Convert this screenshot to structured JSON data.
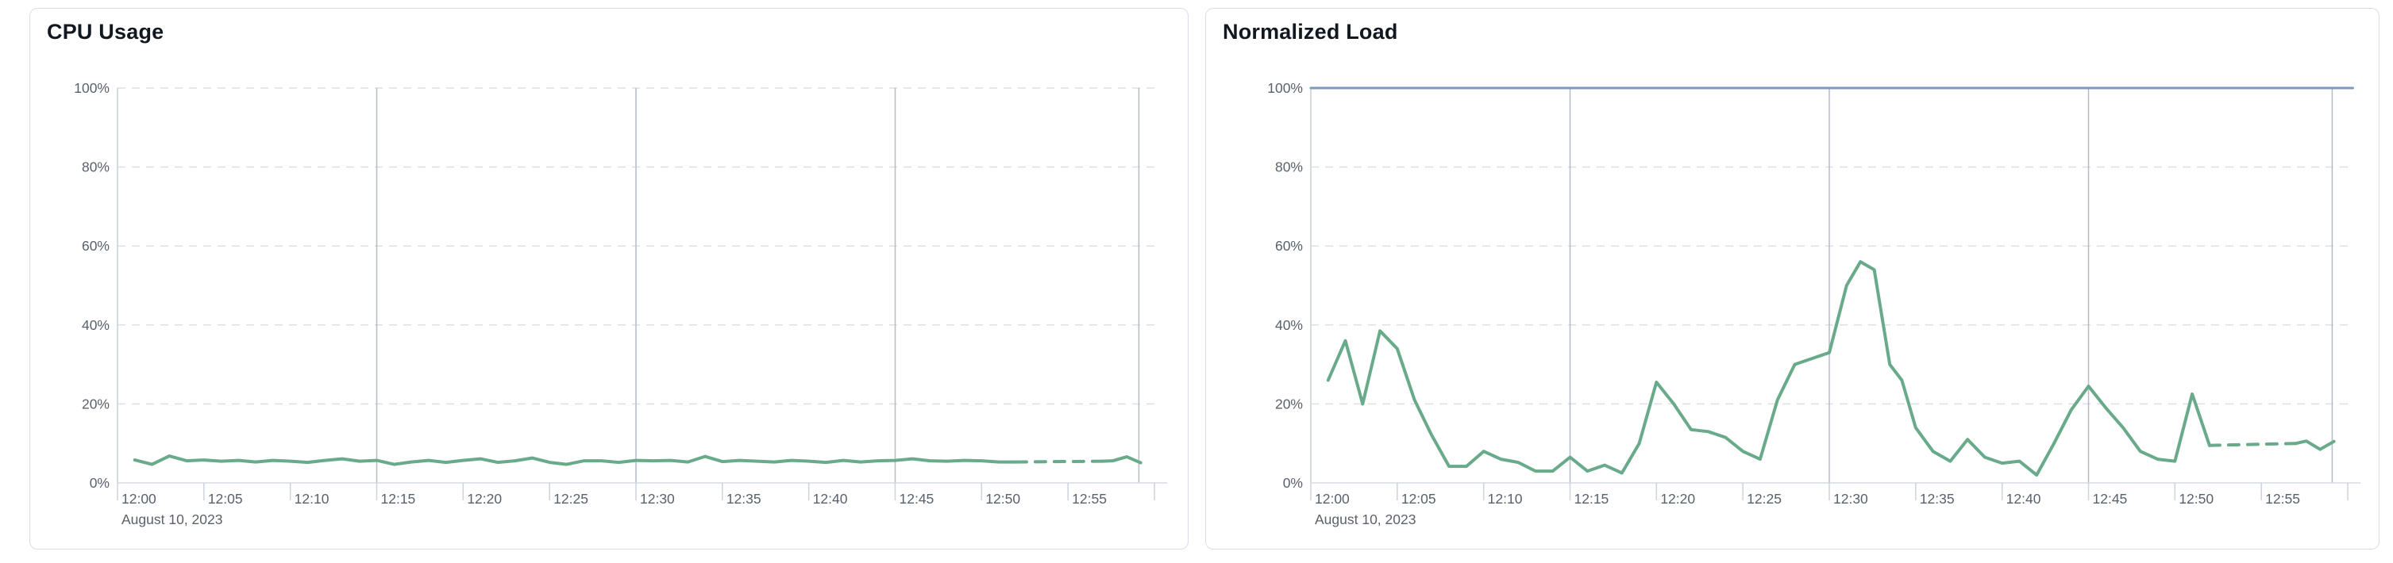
{
  "page": {
    "date_label": "August 10, 2023"
  },
  "chart_data": [
    {
      "type": "line",
      "title": "CPU Usage",
      "unit": "%",
      "legend_position": "none",
      "grid": true,
      "y_axis": {
        "min": 0,
        "max": 100,
        "ticks": [
          {
            "value": 0,
            "label": "0%"
          },
          {
            "value": 20,
            "label": "20%"
          },
          {
            "value": 40,
            "label": "40%"
          },
          {
            "value": 60,
            "label": "60%"
          },
          {
            "value": 80,
            "label": "80%"
          },
          {
            "value": 100,
            "label": "100%"
          }
        ]
      },
      "x_axis": {
        "start": "12:00",
        "end": "13:00",
        "date_label": "August 10, 2023",
        "ticks": [
          {
            "minute": 0,
            "label": "12:00"
          },
          {
            "minute": 5,
            "label": "12:05"
          },
          {
            "minute": 10,
            "label": "12:10"
          },
          {
            "minute": 15,
            "label": "12:15"
          },
          {
            "minute": 20,
            "label": "12:20"
          },
          {
            "minute": 25,
            "label": "12:25"
          },
          {
            "minute": 30,
            "label": "12:30"
          },
          {
            "minute": 35,
            "label": "12:35"
          },
          {
            "minute": 40,
            "label": "12:40"
          },
          {
            "minute": 45,
            "label": "12:45"
          },
          {
            "minute": 50,
            "label": "12:50"
          },
          {
            "minute": 55,
            "label": "12:55"
          },
          {
            "minute": 60,
            "label": ""
          }
        ],
        "major_gridlines_min": [
          15,
          30,
          45
        ],
        "last_data_minute": 59.1
      },
      "series": [
        {
          "name": "cpu-usage",
          "color": "#68aa89",
          "segments": [
            {
              "style": "solid",
              "points": [
                [
                  1,
                  5.8
                ],
                [
                  2,
                  4.7
                ],
                [
                  3,
                  6.8
                ],
                [
                  4,
                  5.6
                ],
                [
                  5,
                  5.8
                ],
                [
                  6,
                  5.5
                ],
                [
                  7,
                  5.7
                ],
                [
                  8,
                  5.3
                ],
                [
                  9,
                  5.7
                ],
                [
                  10,
                  5.5
                ],
                [
                  11,
                  5.2
                ],
                [
                  12,
                  5.7
                ],
                [
                  13,
                  6.1
                ],
                [
                  14,
                  5.5
                ],
                [
                  15,
                  5.7
                ],
                [
                  16,
                  4.7
                ],
                [
                  17,
                  5.3
                ],
                [
                  18,
                  5.7
                ],
                [
                  19,
                  5.2
                ],
                [
                  20,
                  5.7
                ],
                [
                  21,
                  6.1
                ],
                [
                  22,
                  5.2
                ],
                [
                  23,
                  5.6
                ],
                [
                  24,
                  6.3
                ],
                [
                  25,
                  5.2
                ],
                [
                  26,
                  4.7
                ],
                [
                  27,
                  5.6
                ],
                [
                  28,
                  5.6
                ],
                [
                  29,
                  5.2
                ],
                [
                  30,
                  5.7
                ],
                [
                  31,
                  5.6
                ],
                [
                  32,
                  5.7
                ],
                [
                  33,
                  5.3
                ],
                [
                  34,
                  6.7
                ],
                [
                  35,
                  5.4
                ],
                [
                  36,
                  5.7
                ],
                [
                  37,
                  5.5
                ],
                [
                  38,
                  5.3
                ],
                [
                  39,
                  5.7
                ],
                [
                  40,
                  5.5
                ],
                [
                  41,
                  5.2
                ],
                [
                  42,
                  5.7
                ],
                [
                  43,
                  5.3
                ],
                [
                  44,
                  5.6
                ],
                [
                  45,
                  5.7
                ],
                [
                  46,
                  6.1
                ],
                [
                  47,
                  5.6
                ],
                [
                  48,
                  5.5
                ],
                [
                  49,
                  5.7
                ],
                [
                  50,
                  5.6
                ],
                [
                  51,
                  5.3
                ],
                [
                  52,
                  5.3
                ]
              ]
            },
            {
              "style": "dashed",
              "points": [
                [
                  52,
                  5.3
                ],
                [
                  57,
                  5.5
                ]
              ]
            },
            {
              "style": "solid",
              "points": [
                [
                  57,
                  5.5
                ],
                [
                  57.6,
                  5.6
                ],
                [
                  58.4,
                  6.6
                ],
                [
                  59.2,
                  5.1
                ]
              ]
            }
          ]
        }
      ]
    },
    {
      "type": "line",
      "title": "Normalized Load",
      "unit": "%",
      "legend_position": "none",
      "grid": true,
      "y_axis": {
        "min": 0,
        "max": 100,
        "ticks": [
          {
            "value": 0,
            "label": "0%"
          },
          {
            "value": 20,
            "label": "20%"
          },
          {
            "value": 40,
            "label": "40%"
          },
          {
            "value": 60,
            "label": "60%"
          },
          {
            "value": 80,
            "label": "80%"
          },
          {
            "value": 100,
            "label": "100%"
          }
        ]
      },
      "x_axis": {
        "start": "12:00",
        "end": "13:00",
        "date_label": "August 10, 2023",
        "ticks": [
          {
            "minute": 0,
            "label": "12:00"
          },
          {
            "minute": 5,
            "label": "12:05"
          },
          {
            "minute": 10,
            "label": "12:10"
          },
          {
            "minute": 15,
            "label": "12:15"
          },
          {
            "minute": 20,
            "label": "12:20"
          },
          {
            "minute": 25,
            "label": "12:25"
          },
          {
            "minute": 30,
            "label": "12:30"
          },
          {
            "minute": 35,
            "label": "12:35"
          },
          {
            "minute": 40,
            "label": "12:40"
          },
          {
            "minute": 45,
            "label": "12:45"
          },
          {
            "minute": 50,
            "label": "12:50"
          },
          {
            "minute": 55,
            "label": "12:55"
          },
          {
            "minute": 60,
            "label": ""
          }
        ],
        "major_gridlines_min": [
          15,
          30,
          45
        ],
        "last_data_minute": 59.1
      },
      "series": [
        {
          "name": "limit-100",
          "color": "#7d9ac1",
          "segments": [
            {
              "style": "solid",
              "points": [
                [
                  0,
                  100
                ],
                [
                  60.3,
                  100
                ]
              ]
            }
          ]
        },
        {
          "name": "normalized-load",
          "color": "#68aa89",
          "segments": [
            {
              "style": "solid",
              "points": [
                [
                  1,
                  26
                ],
                [
                  2,
                  36
                ],
                [
                  3,
                  20
                ],
                [
                  4,
                  38.5
                ],
                [
                  5,
                  34
                ],
                [
                  6,
                  21
                ],
                [
                  7,
                  12
                ],
                [
                  8,
                  4.2
                ],
                [
                  9,
                  4.2
                ],
                [
                  10,
                  8
                ],
                [
                  11,
                  6
                ],
                [
                  12,
                  5.2
                ],
                [
                  13,
                  3
                ],
                [
                  14,
                  3
                ],
                [
                  15,
                  6.5
                ],
                [
                  16,
                  3
                ],
                [
                  17,
                  4.5
                ],
                [
                  18,
                  2.5
                ],
                [
                  19,
                  10
                ],
                [
                  20,
                  25.5
                ],
                [
                  21,
                  20
                ],
                [
                  22,
                  13.5
                ],
                [
                  23,
                  13
                ],
                [
                  24,
                  11.5
                ],
                [
                  25,
                  8
                ],
                [
                  26,
                  6
                ],
                [
                  27,
                  21
                ],
                [
                  28,
                  30
                ],
                [
                  29,
                  31.5
                ],
                [
                  30,
                  33
                ],
                [
                  31,
                  50
                ],
                [
                  31.8,
                  56
                ],
                [
                  32.6,
                  54
                ],
                [
                  33.5,
                  30
                ],
                [
                  34.2,
                  26
                ],
                [
                  35,
                  14
                ],
                [
                  36,
                  8
                ],
                [
                  37,
                  5.5
                ],
                [
                  38,
                  11
                ],
                [
                  39,
                  6.5
                ],
                [
                  40,
                  5
                ],
                [
                  41,
                  5.5
                ],
                [
                  42,
                  2
                ],
                [
                  43,
                  10
                ],
                [
                  44,
                  18.5
                ],
                [
                  45,
                  24.5
                ],
                [
                  46,
                  19
                ],
                [
                  47,
                  14
                ],
                [
                  48,
                  8
                ],
                [
                  49,
                  6
                ],
                [
                  50,
                  5.5
                ],
                [
                  51,
                  22.5
                ],
                [
                  52,
                  9.5
                ]
              ]
            },
            {
              "style": "dashed",
              "points": [
                [
                  52,
                  9.5
                ],
                [
                  57,
                  10
                ]
              ]
            },
            {
              "style": "solid",
              "points": [
                [
                  57,
                  10
                ],
                [
                  57.6,
                  10.6
                ],
                [
                  58.4,
                  8.5
                ],
                [
                  59.2,
                  10.5
                ]
              ]
            }
          ]
        }
      ]
    }
  ]
}
